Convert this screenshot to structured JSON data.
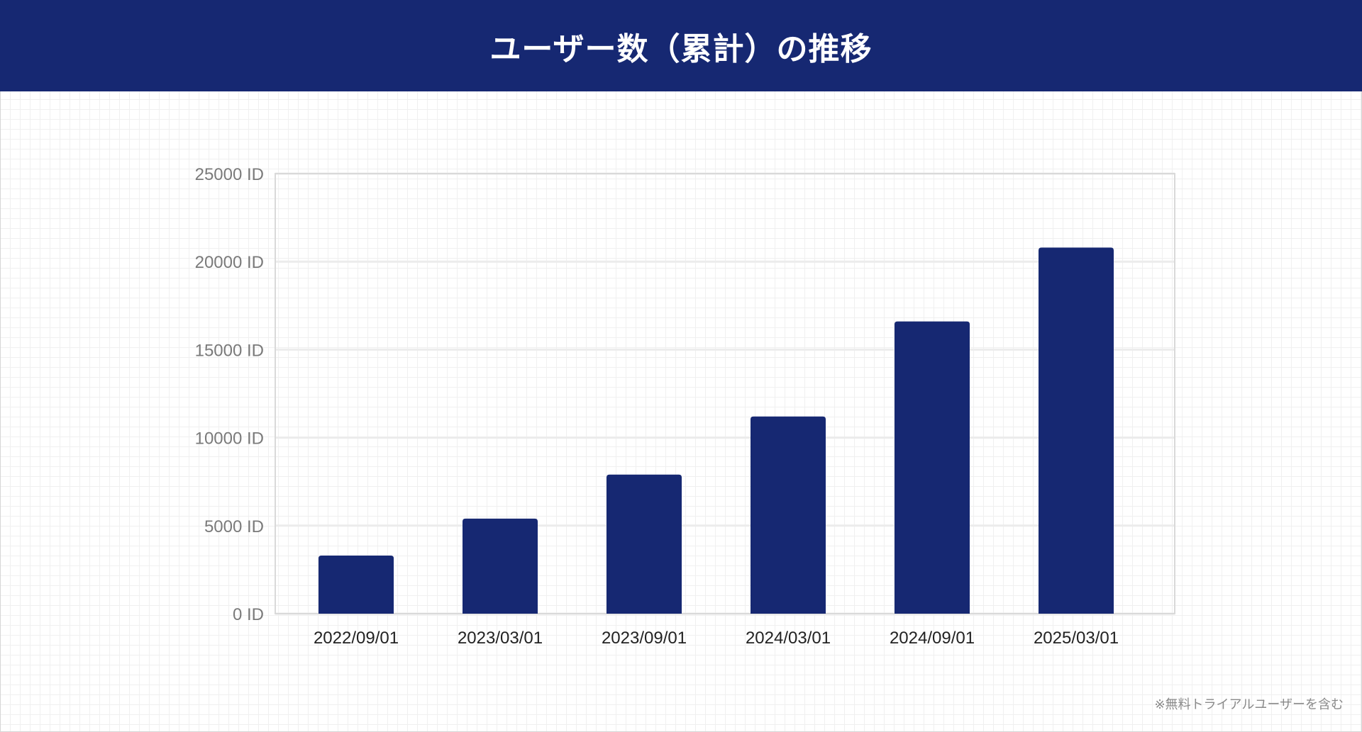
{
  "header": {
    "title": "ユーザー数（累計）の推移"
  },
  "footnote": "※無料トライアルユーザーを含む",
  "colors": {
    "header_bg": "#162872",
    "bar": "#162872",
    "axis_text": "#7a7a7a",
    "category_text": "#222222",
    "gridline": "#ececec",
    "plot_border": "#d9d9d9"
  },
  "chart_data": {
    "type": "bar",
    "categories": [
      "2022/09/01",
      "2023/03/01",
      "2023/09/01",
      "2024/03/01",
      "2024/09/01",
      "2025/03/01"
    ],
    "values": [
      3300,
      5400,
      7900,
      11200,
      16600,
      20800
    ],
    "ylim": [
      0,
      25000
    ],
    "yticks": [
      0,
      5000,
      10000,
      15000,
      20000,
      25000
    ],
    "ytick_labels": [
      "0 ID",
      "5000 ID",
      "10000 ID",
      "15000 ID",
      "20000 ID",
      "25000 ID"
    ],
    "grid": true,
    "legend": "none"
  }
}
